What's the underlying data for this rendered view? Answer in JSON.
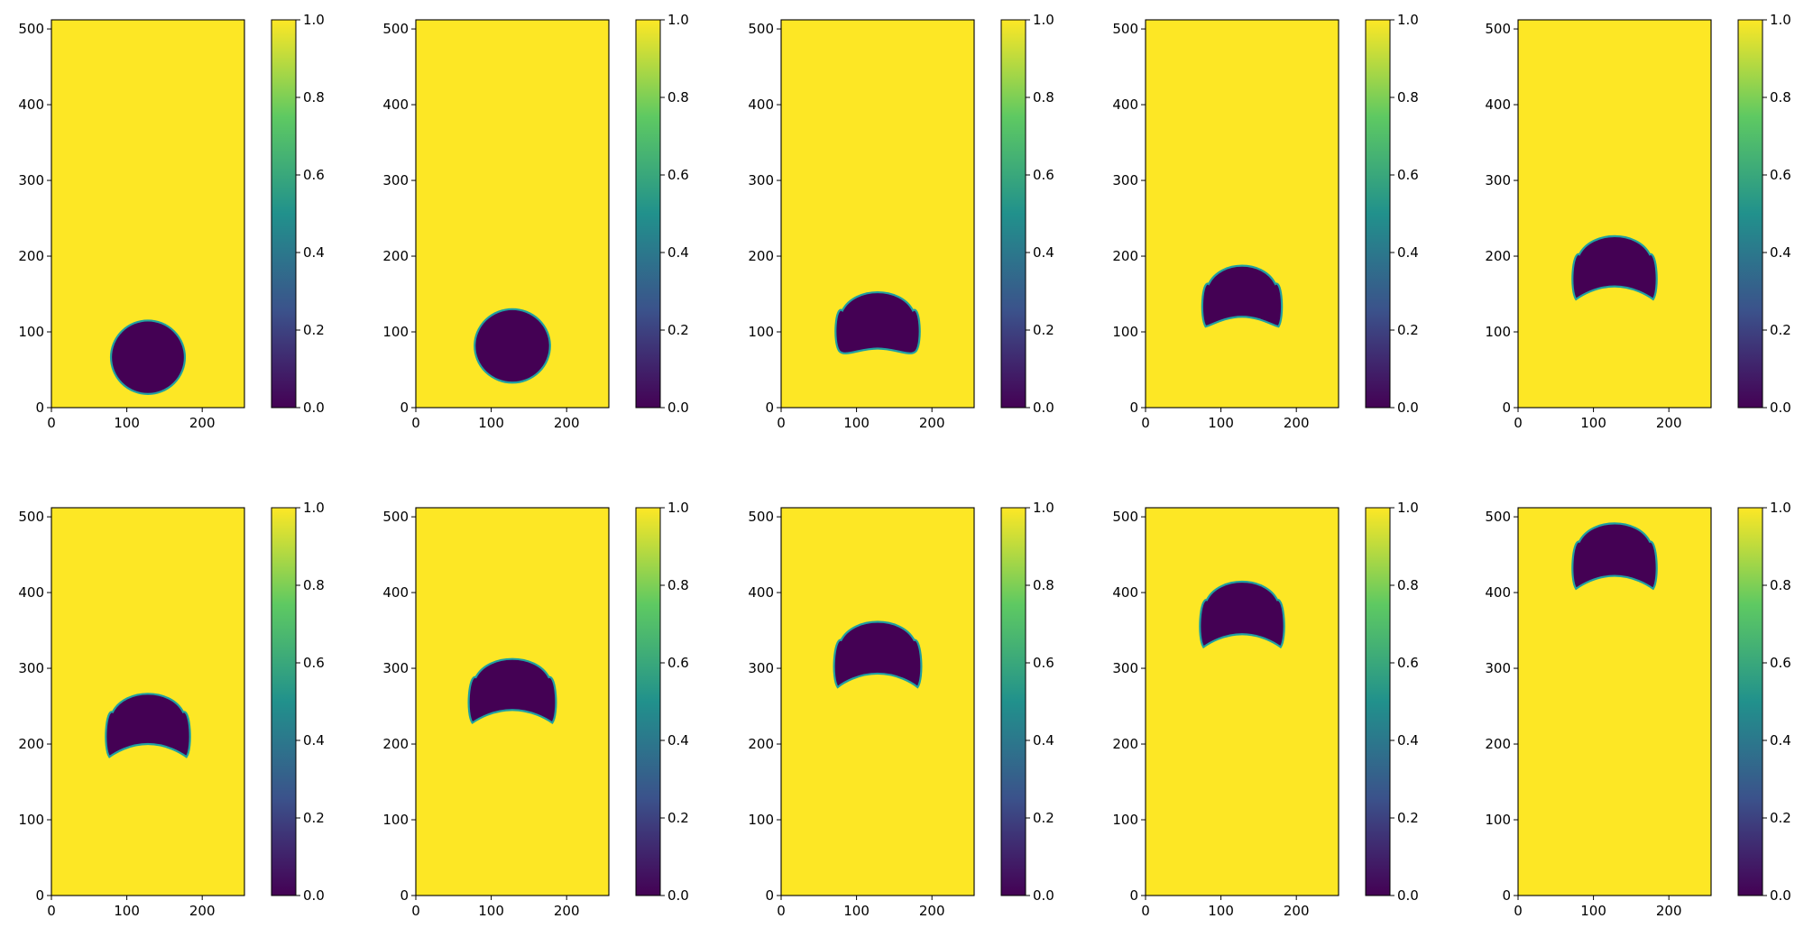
{
  "chart_data": {
    "type": "heatmap",
    "layout": {
      "rows": 2,
      "cols": 5
    },
    "colormap": {
      "name": "viridis",
      "stops": [
        "#440154",
        "#3b528b",
        "#21918c",
        "#5ec962",
        "#fde725"
      ],
      "min": 0.0,
      "max": 1.0
    },
    "background_value": 1.0,
    "bubble_value": 0.0,
    "xlim": [
      0,
      256
    ],
    "ylim": [
      0,
      512
    ],
    "xticks": [
      0,
      100,
      200
    ],
    "yticks": [
      0,
      100,
      200,
      300,
      400,
      500
    ],
    "colorbar_ticks": [
      "0.0",
      "0.2",
      "0.4",
      "0.6",
      "0.8",
      "1.0"
    ],
    "panels": [
      {
        "cx": 128,
        "base_y": 18,
        "top_y": 115,
        "radius": 49,
        "concavity_y": null,
        "skirt_y": null
      },
      {
        "cx": 128,
        "base_y": 33,
        "top_y": 130,
        "radius": 50,
        "concavity_y": null,
        "skirt_y": null
      },
      {
        "cx": 128,
        "base_y": 75,
        "top_y": 158,
        "radius": 55,
        "concavity_y": 78,
        "skirt_y": 75
      },
      {
        "cx": 128,
        "base_y": 105,
        "top_y": 193,
        "radius": 52,
        "concavity_y": 120,
        "skirt_y": 107
      },
      {
        "cx": 128,
        "base_y": 143,
        "top_y": 232,
        "radius": 55,
        "concavity_y": 160,
        "skirt_y": 143
      },
      {
        "cx": 128,
        "base_y": 183,
        "top_y": 272,
        "radius": 55,
        "concavity_y": 200,
        "skirt_y": 183
      },
      {
        "cx": 128,
        "base_y": 228,
        "top_y": 318,
        "radius": 57,
        "concavity_y": 245,
        "skirt_y": 228
      },
      {
        "cx": 128,
        "base_y": 275,
        "top_y": 367,
        "radius": 57,
        "concavity_y": 293,
        "skirt_y": 275
      },
      {
        "cx": 128,
        "base_y": 328,
        "top_y": 420,
        "radius": 55,
        "concavity_y": 345,
        "skirt_y": 328
      },
      {
        "cx": 128,
        "base_y": 405,
        "top_y": 497,
        "radius": 55,
        "concavity_y": 422,
        "skirt_y": 405
      }
    ]
  }
}
